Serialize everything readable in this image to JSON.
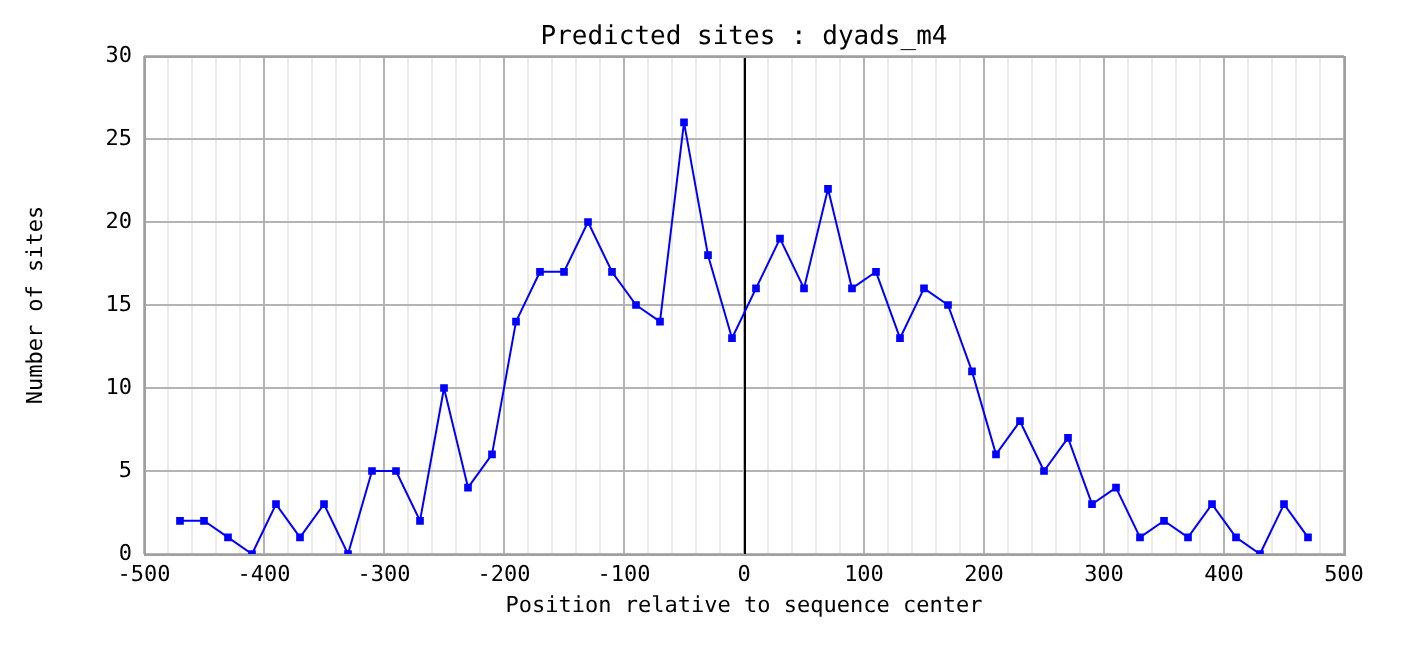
{
  "chart_data": {
    "type": "line",
    "title": "Predicted sites : dyads_m4",
    "xlabel": "Position relative to sequence center",
    "ylabel": "Number of sites",
    "x": [
      -470,
      -450,
      -430,
      -410,
      -390,
      -370,
      -350,
      -330,
      -310,
      -290,
      -270,
      -250,
      -230,
      -210,
      -190,
      -170,
      -150,
      -130,
      -110,
      -90,
      -70,
      -50,
      -30,
      -10,
      10,
      30,
      50,
      70,
      90,
      110,
      130,
      150,
      170,
      190,
      210,
      230,
      250,
      270,
      290,
      310,
      330,
      350,
      370,
      390,
      410,
      430,
      450,
      470
    ],
    "series": [
      {
        "color": "#0000ff",
        "values": [
          2,
          2,
          1,
          0,
          3,
          1,
          3,
          0,
          5,
          5,
          2,
          10,
          4,
          6,
          14,
          17,
          17,
          20,
          17,
          15,
          14,
          26,
          18,
          13,
          16,
          19,
          16,
          22,
          16,
          17,
          13,
          16,
          15,
          11,
          6,
          8,
          5,
          7,
          3,
          4,
          1,
          2,
          1,
          3,
          1,
          0,
          3,
          1
        ]
      }
    ],
    "xlim": [
      -500,
      500
    ],
    "xticks": [
      -500,
      {
        "value": -480,
        "label": null
      },
      {
        "value": -460,
        "label": null
      },
      {
        "value": -440,
        "label": null
      },
      {
        "value": -420,
        "label": null
      },
      -400,
      {
        "value": -380,
        "label": null
      },
      {
        "value": -360,
        "label": null
      },
      {
        "value": -340,
        "label": null
      },
      {
        "value": -320,
        "label": null
      },
      -300,
      {
        "value": -280,
        "label": null
      },
      {
        "value": -260,
        "label": null
      },
      {
        "value": -240,
        "label": null
      },
      {
        "value": -220,
        "label": null
      },
      -200,
      {
        "value": -180,
        "label": null
      },
      {
        "value": -160,
        "label": null
      },
      {
        "value": -140,
        "label": null
      },
      {
        "value": -120,
        "label": null
      },
      -100,
      {
        "value": -80,
        "label": null
      },
      {
        "value": -60,
        "label": null
      },
      {
        "value": -40,
        "label": null
      },
      {
        "value": -20,
        "label": null
      },
      0,
      {
        "value": 20,
        "label": null
      },
      {
        "value": 40,
        "label": null
      },
      {
        "value": 60,
        "label": null
      },
      {
        "value": 80,
        "label": null
      },
      100,
      {
        "value": 120,
        "label": null
      },
      {
        "value": 140,
        "label": null
      },
      {
        "value": 160,
        "label": null
      },
      {
        "value": 180,
        "label": null
      },
      200,
      {
        "value": 220,
        "label": null
      },
      {
        "value": 240,
        "label": null
      },
      {
        "value": 260,
        "label": null
      },
      {
        "value": 280,
        "label": null
      },
      300,
      {
        "value": 320,
        "label": null
      },
      {
        "value": 340,
        "label": null
      },
      {
        "value": 360,
        "label": null
      },
      {
        "value": 380,
        "label": null
      },
      400,
      {
        "value": 420,
        "label": null
      },
      {
        "value": 440,
        "label": null
      },
      {
        "value": 460,
        "label": null
      },
      {
        "value": 480,
        "label": null
      },
      500
    ],
    "ylim": [
      0,
      30
    ],
    "yticks": [
      0,
      5,
      10,
      15,
      20,
      25,
      30
    ],
    "ref_lines": [
      {
        "axis": "x",
        "value": 0,
        "color": "#000000"
      }
    ],
    "grid": true,
    "marker": "square",
    "line_style": "solid",
    "legend": false
  }
}
